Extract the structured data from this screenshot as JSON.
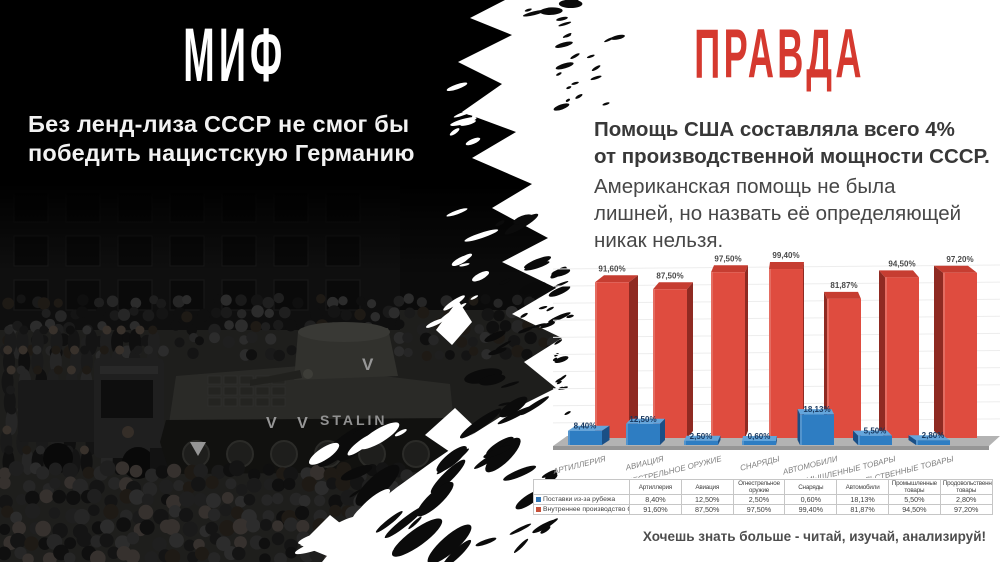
{
  "page": {
    "left_bg": "#000000",
    "right_bg": "#ffffff"
  },
  "myth": {
    "title": "МИФ",
    "statement_lines": [
      "Без ленд-лиза СССР не смог бы",
      "победить нацистскую Германию"
    ],
    "photo": {
      "visible_text_tank": "STALIN",
      "visible_marks": [
        "V V",
        "V"
      ]
    }
  },
  "truth": {
    "title": "ПРАВДА",
    "title_color": "#d5392f",
    "lead_bold_lines": [
      "Помощь США составляла всего 4%",
      "от производственной мощности СССР."
    ],
    "lead_regular_lines": [
      "Американская помощь не была",
      "лишней, но назвать её определяющей",
      "никак нельзя."
    ],
    "footer": "Хочешь знать больше - читай, изучай, анализируй!"
  },
  "chart_data": {
    "type": "bar",
    "style": "3d-clustered-column",
    "title": "",
    "xlabel": "",
    "ylabel": "",
    "ylim": [
      0,
      100
    ],
    "grid": true,
    "legend_position": "bottom-table",
    "categories": [
      "Артиллерия",
      "Авиация",
      "Огнестрельное оружие",
      "Снаряды",
      "Автомобили",
      "Промышленные товары",
      "Продовольственные товары"
    ],
    "series": [
      {
        "name": "Поставки из-за рубежа",
        "color": "#2E75B6",
        "values": [
          8.4,
          12.5,
          2.5,
          0.6,
          18.13,
          5.5,
          2.8
        ],
        "value_labels": [
          "8,40%",
          "12,50%",
          "2,50%",
          "0,60%",
          "18,13%",
          "5,50%",
          "2,80%"
        ]
      },
      {
        "name": "Внутреннее производство СССР",
        "color": "#C85038",
        "values": [
          91.6,
          87.5,
          97.5,
          99.4,
          81.87,
          94.5,
          97.2
        ],
        "value_labels": [
          "91,60%",
          "87,50%",
          "97,50%",
          "99,40%",
          "81,87%",
          "94,50%",
          "97,20%"
        ]
      }
    ]
  }
}
